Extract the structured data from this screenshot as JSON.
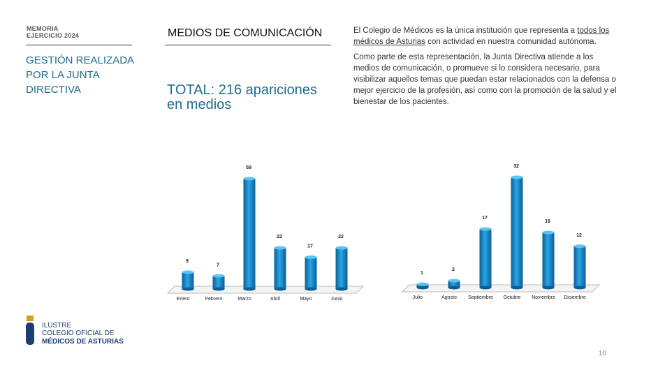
{
  "header": {
    "memoria": "MEMORIA",
    "ejercicio": "EJERCICIO 2024",
    "section": "GESTIÓN REALIZADA POR LA JUNTA DIRECTIVA",
    "title": "MEDIOS DE COMUNICACIÓN",
    "total": "TOTAL: 216 apariciones en medios"
  },
  "paragraphs": [
    {
      "before": "El Colegio de Médicos es la única institución que representa a ",
      "link": "todos los médicos de Asturias",
      "after": " con actividad en nuestra comunidad autónoma."
    },
    {
      "before": "Como parte de esta representación, la Junta Directiva atiende a los medios de comunicación, o promueve si lo considera necesario, para visibilizar aquellos temas que puedan estar relacionados con la defensa o mejor ejercicio de la profesión, así como con la promoción de la salud y el bienestar de los pacientes.",
      "link": "",
      "after": ""
    }
  ],
  "logo": {
    "line1": "ILUSTRE",
    "line2": "COLEGIO OFICIAL DE",
    "line3": "MÉDICOS DE ASTURIAS"
  },
  "page_number": "10",
  "chart_data": [
    {
      "type": "bar",
      "categories": [
        "Enero",
        "Febrero",
        "Marzo",
        "Abril",
        "Mayo",
        "Junio"
      ],
      "values": [
        9,
        7,
        59,
        22,
        17,
        22
      ],
      "color": "#1a8fd1"
    },
    {
      "type": "bar",
      "categories": [
        "Julio",
        "Agosto",
        "Septiembre",
        "Octubre",
        "Noviembre",
        "Diciembre"
      ],
      "values": [
        1,
        2,
        17,
        32,
        16,
        12
      ],
      "color": "#1a8fd1"
    }
  ]
}
